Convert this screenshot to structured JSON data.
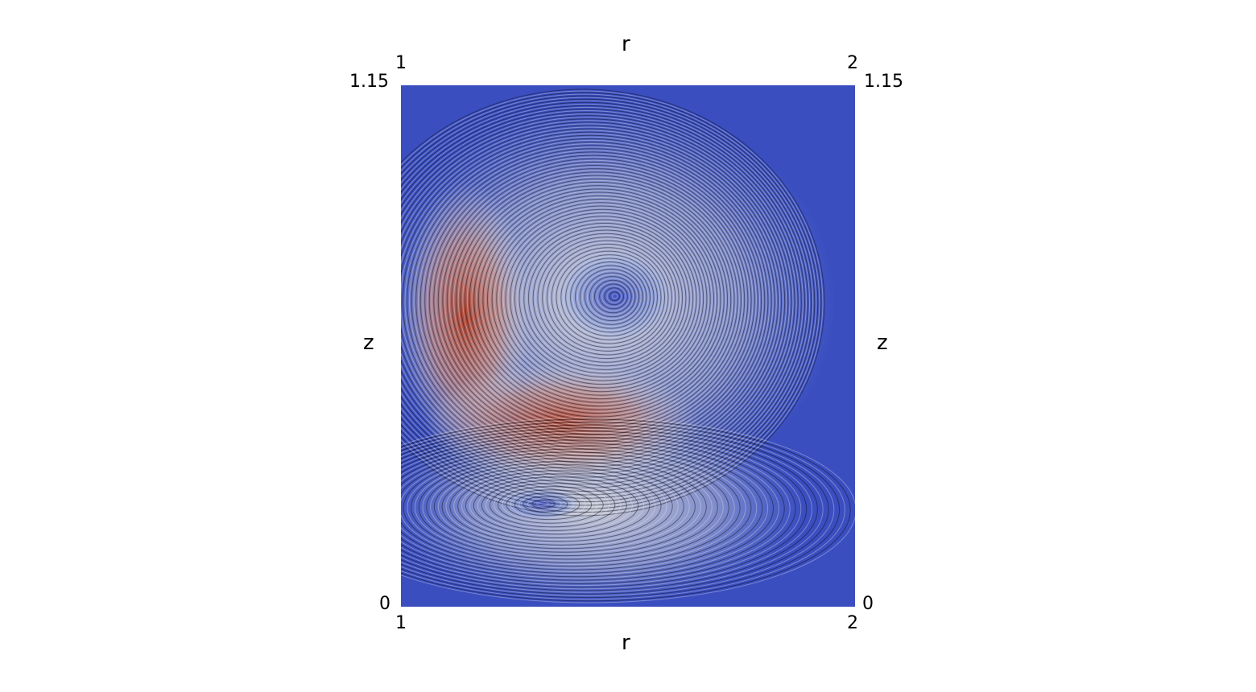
{
  "figure": {
    "axis_titles": {
      "top": "r",
      "bottom": "r",
      "left": "z",
      "right": "z"
    },
    "ticks": {
      "top_left": "1",
      "top_right": "2",
      "bottom_left": "1",
      "bottom_right": "2",
      "left_top": "1.15",
      "left_bottom": "0",
      "right_top": "1.15",
      "right_bottom": "0"
    },
    "colormap": [
      "#3b4cc0",
      "#8fb0fe",
      "#dddddd",
      "#f4987a",
      "#b40426"
    ],
    "r_range": [
      1,
      2
    ],
    "z_range": [
      0,
      1.15
    ]
  }
}
